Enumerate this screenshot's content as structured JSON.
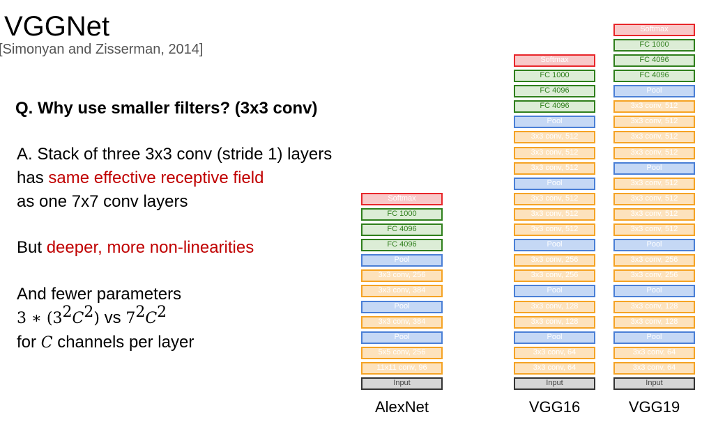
{
  "slide": {
    "title": "VGGNet",
    "citation": "[Simonyan and Zisserman, 2014]",
    "question": "Q. Why use smaller filters? (3x3 conv)",
    "answer": {
      "line1": "A. Stack of three 3x3 conv (stride 1) layers",
      "line2_prefix": "has ",
      "line2_highlight": "same effective receptive field",
      "line3": "as one 7x7 conv layers"
    },
    "but": {
      "prefix": "But ",
      "highlight": "deeper, more non-linearities"
    },
    "fewer": {
      "line1": "And fewer parameters",
      "expr_left": "3 ∗ (3",
      "exp2": "2",
      "C": "C",
      "close": ")",
      "vs": " vs ",
      "seven": "7",
      "for_prefix": "for ",
      "for_suffix": " channels per layer"
    }
  },
  "colors": {
    "softmax": "#e8262a",
    "fc": "#2f7f1c",
    "pool": "#4a7fd6",
    "conv": "#f5a324",
    "input": "#333333",
    "highlight_text": "#c00000"
  },
  "networks": [
    {
      "name": "AlexNet",
      "layers": [
        {
          "label": "Softmax",
          "type": "softmax"
        },
        {
          "label": "FC 1000",
          "type": "fc"
        },
        {
          "label": "FC 4096",
          "type": "fc"
        },
        {
          "label": "FC 4096",
          "type": "fc"
        },
        {
          "label": "Pool",
          "type": "pool"
        },
        {
          "label": "3x3 conv, 256",
          "type": "conv"
        },
        {
          "label": "3x3 conv, 384",
          "type": "conv"
        },
        {
          "label": "Pool",
          "type": "pool"
        },
        {
          "label": "3x3 conv, 384",
          "type": "conv"
        },
        {
          "label": "Pool",
          "type": "pool"
        },
        {
          "label": "5x5 conv, 256",
          "type": "conv"
        },
        {
          "label": "11x11 conv, 96",
          "type": "conv"
        },
        {
          "label": "Input",
          "type": "input"
        }
      ]
    },
    {
      "name": "VGG16",
      "layers": [
        {
          "label": "Softmax",
          "type": "softmax"
        },
        {
          "label": "FC 1000",
          "type": "fc"
        },
        {
          "label": "FC 4096",
          "type": "fc"
        },
        {
          "label": "FC 4096",
          "type": "fc"
        },
        {
          "label": "Pool",
          "type": "pool"
        },
        {
          "label": "3x3 conv, 512",
          "type": "conv"
        },
        {
          "label": "3x3 conv, 512",
          "type": "conv"
        },
        {
          "label": "3x3 conv, 512",
          "type": "conv"
        },
        {
          "label": "Pool",
          "type": "pool"
        },
        {
          "label": "3x3 conv, 512",
          "type": "conv"
        },
        {
          "label": "3x3 conv, 512",
          "type": "conv"
        },
        {
          "label": "3x3 conv, 512",
          "type": "conv"
        },
        {
          "label": "Pool",
          "type": "pool"
        },
        {
          "label": "3x3 conv, 256",
          "type": "conv"
        },
        {
          "label": "3x3 conv, 256",
          "type": "conv"
        },
        {
          "label": "Pool",
          "type": "pool"
        },
        {
          "label": "3x3 conv, 128",
          "type": "conv"
        },
        {
          "label": "3x3 conv, 128",
          "type": "conv"
        },
        {
          "label": "Pool",
          "type": "pool"
        },
        {
          "label": "3x3 conv, 64",
          "type": "conv"
        },
        {
          "label": "3x3 conv, 64",
          "type": "conv"
        },
        {
          "label": "Input",
          "type": "input"
        }
      ]
    },
    {
      "name": "VGG19",
      "layers": [
        {
          "label": "Softmax",
          "type": "softmax"
        },
        {
          "label": "FC 1000",
          "type": "fc"
        },
        {
          "label": "FC 4096",
          "type": "fc"
        },
        {
          "label": "FC 4096",
          "type": "fc"
        },
        {
          "label": "Pool",
          "type": "pool"
        },
        {
          "label": "3x3 conv, 512",
          "type": "conv"
        },
        {
          "label": "3x3 conv, 512",
          "type": "conv"
        },
        {
          "label": "3x3 conv, 512",
          "type": "conv"
        },
        {
          "label": "3x3 conv, 512",
          "type": "conv"
        },
        {
          "label": "Pool",
          "type": "pool"
        },
        {
          "label": "3x3 conv, 512",
          "type": "conv"
        },
        {
          "label": "3x3 conv, 512",
          "type": "conv"
        },
        {
          "label": "3x3 conv, 512",
          "type": "conv"
        },
        {
          "label": "3x3 conv, 512",
          "type": "conv"
        },
        {
          "label": "Pool",
          "type": "pool"
        },
        {
          "label": "3x3 conv, 256",
          "type": "conv"
        },
        {
          "label": "3x3 conv, 256",
          "type": "conv"
        },
        {
          "label": "Pool",
          "type": "pool"
        },
        {
          "label": "3x3 conv, 128",
          "type": "conv"
        },
        {
          "label": "3x3 conv, 128",
          "type": "conv"
        },
        {
          "label": "Pool",
          "type": "pool"
        },
        {
          "label": "3x3 conv, 64",
          "type": "conv"
        },
        {
          "label": "3x3 conv, 64",
          "type": "conv"
        },
        {
          "label": "Input",
          "type": "input"
        }
      ]
    }
  ]
}
